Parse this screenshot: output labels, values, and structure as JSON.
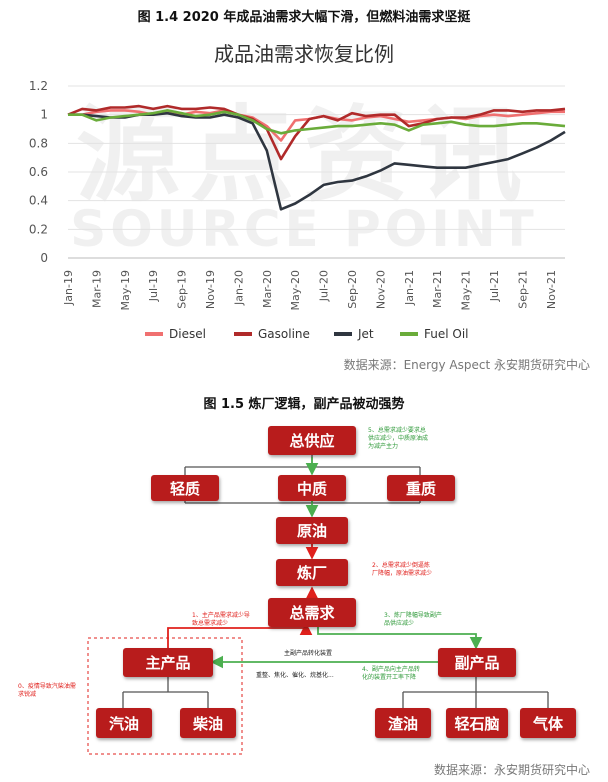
{
  "figure1": {
    "caption": "图 1.4 2020 年成品油需求大幅下滑，但燃料油需求坚挺",
    "source": "数据来源：Energy Aspect  永安期货研究中心"
  },
  "watermark": {
    "line1": "源点资讯",
    "line2": "SOURCE POINT"
  },
  "chart_data": {
    "type": "line",
    "title": "成品油需求恢复比例",
    "xlabel": "",
    "ylabel": "",
    "ylim": [
      0,
      1.2
    ],
    "yticks": [
      "0",
      "0.2",
      "0.4",
      "0.6",
      "0.8",
      "1",
      "1.2"
    ],
    "x": [
      "Jan-19",
      "Feb-19",
      "Mar-19",
      "Apr-19",
      "May-19",
      "Jun-19",
      "Jul-19",
      "Aug-19",
      "Sep-19",
      "Oct-19",
      "Nov-19",
      "Dec-19",
      "Jan-20",
      "Feb-20",
      "Mar-20",
      "Apr-20",
      "May-20",
      "Jun-20",
      "Jul-20",
      "Aug-20",
      "Sep-20",
      "Oct-20",
      "Nov-20",
      "Dec-20",
      "Jan-21",
      "Feb-21",
      "Mar-21",
      "Apr-21",
      "May-21",
      "Jun-21",
      "Jul-21",
      "Aug-21",
      "Sep-21",
      "Oct-21",
      "Nov-21",
      "Dec-21"
    ],
    "xticklabels": [
      "Jan-19",
      "Mar-19",
      "May-19",
      "Jul-19",
      "Sep-19",
      "Nov-19",
      "Jan-20",
      "Mar-20",
      "May-20",
      "Jul-20",
      "Sep-20",
      "Nov-20",
      "Jan-21",
      "Mar-21",
      "May-21",
      "Jul-21",
      "Sep-21",
      "Nov-21"
    ],
    "legend_position": "bottom",
    "grid": true,
    "series": [
      {
        "name": "Diesel",
        "color": "#f07070",
        "values": [
          1.0,
          1.0,
          1.02,
          1.03,
          1.03,
          1.02,
          1.0,
          1.03,
          1.0,
          1.02,
          1.01,
          1.03,
          1.0,
          0.98,
          0.92,
          0.82,
          0.96,
          0.97,
          0.99,
          0.97,
          0.96,
          0.98,
          0.99,
          0.97,
          0.95,
          0.96,
          0.97,
          0.98,
          0.97,
          0.99,
          1.0,
          0.99,
          1.0,
          1.01,
          1.02,
          1.02
        ]
      },
      {
        "name": "Gasoline",
        "color": "#b02a2a",
        "values": [
          1.0,
          1.04,
          1.03,
          1.05,
          1.05,
          1.06,
          1.04,
          1.06,
          1.04,
          1.04,
          1.05,
          1.04,
          1.0,
          0.97,
          0.9,
          0.69,
          0.85,
          0.97,
          0.99,
          0.96,
          1.01,
          0.99,
          1.0,
          1.0,
          0.92,
          0.94,
          0.97,
          0.98,
          0.98,
          1.0,
          1.03,
          1.03,
          1.02,
          1.03,
          1.03,
          1.04
        ]
      },
      {
        "name": "Jet",
        "color": "#2f3640",
        "values": [
          1.0,
          1.0,
          0.99,
          0.98,
          0.98,
          1.0,
          1.0,
          1.01,
          0.99,
          0.98,
          0.98,
          1.0,
          0.98,
          0.94,
          0.75,
          0.34,
          0.38,
          0.44,
          0.51,
          0.53,
          0.54,
          0.57,
          0.61,
          0.66,
          0.65,
          0.64,
          0.63,
          0.63,
          0.63,
          0.65,
          0.67,
          0.69,
          0.73,
          0.77,
          0.82,
          0.88
        ]
      },
      {
        "name": "Fuel Oil",
        "color": "#6aac3a",
        "values": [
          1.0,
          1.0,
          0.96,
          0.98,
          0.99,
          1.0,
          1.01,
          1.03,
          1.01,
          0.99,
          1.0,
          1.02,
          1.0,
          0.96,
          0.9,
          0.87,
          0.89,
          0.9,
          0.91,
          0.92,
          0.92,
          0.93,
          0.94,
          0.93,
          0.89,
          0.93,
          0.94,
          0.95,
          0.93,
          0.92,
          0.92,
          0.93,
          0.94,
          0.94,
          0.93,
          0.92
        ]
      }
    ]
  },
  "figure2": {
    "caption": "图 1.5  炼厂逻辑，副产品被动强势",
    "source": "数据来源：永安期货研究中心",
    "boxes": {
      "total_supply": "总供应",
      "light": "轻质",
      "medium": "中质",
      "heavy": "重质",
      "crude": "原油",
      "refinery": "炼厂",
      "total_demand": "总需求",
      "main_product": "主产品",
      "by_product": "副产品",
      "gasoline": "汽油",
      "diesel": "柴油",
      "residue": "渣油",
      "naphtha": "轻石脑",
      "gas": "气体"
    },
    "notes": {
      "n5_line1": "5、总需求减少要求总",
      "n5_line2": "供应减少，中质原油成",
      "n5_line3": "为减产主力",
      "n2_line1": "2、总需求减少倒逼炼",
      "n2_line2": "厂降幅，原油需求减少",
      "n1_line1": "1、主产品需求减少导",
      "n1_line2": "致总需求减少",
      "n3_line1": "3、炼厂降幅导致副产",
      "n3_line2": "品供应减少",
      "conv": "主副产品转化装置",
      "n4_line1": "4、副产品向主产品转",
      "n4_line2": "化的装置开工率下降",
      "units": "重整、焦化、催化、烷基化...",
      "n0_line1": "0、疫情导致汽柴油需",
      "n0_line2": "求锐减"
    }
  }
}
